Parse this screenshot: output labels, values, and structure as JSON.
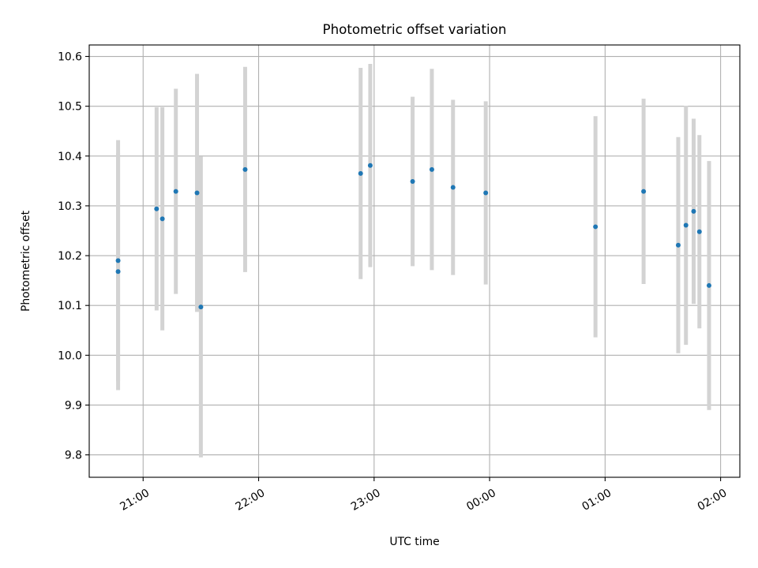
{
  "chart_data": {
    "type": "scatter",
    "title": "Photometric offset variation",
    "xlabel": "UTC time",
    "ylabel": "Photometric offset",
    "x_axis": {
      "kind": "time",
      "start": "20:32",
      "end": "02:10",
      "ticks": [
        "21:00",
        "22:00",
        "23:00",
        "00:00",
        "01:00",
        "02:00"
      ]
    },
    "ylim": [
      9.755,
      10.623
    ],
    "yticks": [
      9.8,
      9.9,
      10.0,
      10.1,
      10.2,
      10.3,
      10.4,
      10.5,
      10.6
    ],
    "ytick_labels": [
      "9.8",
      "9.9",
      "10.0",
      "10.1",
      "10.2",
      "10.3",
      "10.4",
      "10.5",
      "10.6"
    ],
    "grid": true,
    "marker_color": "#1f77b4",
    "errorbar_color": "#d3d3d3",
    "points": [
      {
        "t": "20:47",
        "y": 10.19,
        "lo": 9.948,
        "hi": 10.432
      },
      {
        "t": "20:47",
        "y": 10.168,
        "lo": 9.93,
        "hi": 10.406
      },
      {
        "t": "21:07",
        "y": 10.294,
        "lo": 10.09,
        "hi": 10.498
      },
      {
        "t": "21:10",
        "y": 10.274,
        "lo": 10.05,
        "hi": 10.498
      },
      {
        "t": "21:17",
        "y": 10.329,
        "lo": 10.123,
        "hi": 10.535
      },
      {
        "t": "21:28",
        "y": 10.326,
        "lo": 10.087,
        "hi": 10.565
      },
      {
        "t": "21:30",
        "y": 10.097,
        "lo": 9.795,
        "hi": 10.399
      },
      {
        "t": "21:53",
        "y": 10.373,
        "lo": 10.167,
        "hi": 10.579
      },
      {
        "t": "22:53",
        "y": 10.365,
        "lo": 10.153,
        "hi": 10.577
      },
      {
        "t": "22:58",
        "y": 10.381,
        "lo": 10.177,
        "hi": 10.585
      },
      {
        "t": "23:20",
        "y": 10.349,
        "lo": 10.179,
        "hi": 10.519
      },
      {
        "t": "23:30",
        "y": 10.373,
        "lo": 10.171,
        "hi": 10.575
      },
      {
        "t": "23:41",
        "y": 10.337,
        "lo": 10.161,
        "hi": 10.513
      },
      {
        "t": "23:58",
        "y": 10.326,
        "lo": 10.142,
        "hi": 10.51
      },
      {
        "t": "00:55",
        "y": 10.258,
        "lo": 10.036,
        "hi": 10.48
      },
      {
        "t": "01:20",
        "y": 10.329,
        "lo": 10.143,
        "hi": 10.515
      },
      {
        "t": "01:38",
        "y": 10.221,
        "lo": 10.004,
        "hi": 10.438
      },
      {
        "t": "01:42",
        "y": 10.261,
        "lo": 10.021,
        "hi": 10.501
      },
      {
        "t": "01:46",
        "y": 10.289,
        "lo": 10.103,
        "hi": 10.475
      },
      {
        "t": "01:49",
        "y": 10.248,
        "lo": 10.054,
        "hi": 10.442
      },
      {
        "t": "01:54",
        "y": 10.14,
        "lo": 9.89,
        "hi": 10.39
      }
    ]
  }
}
